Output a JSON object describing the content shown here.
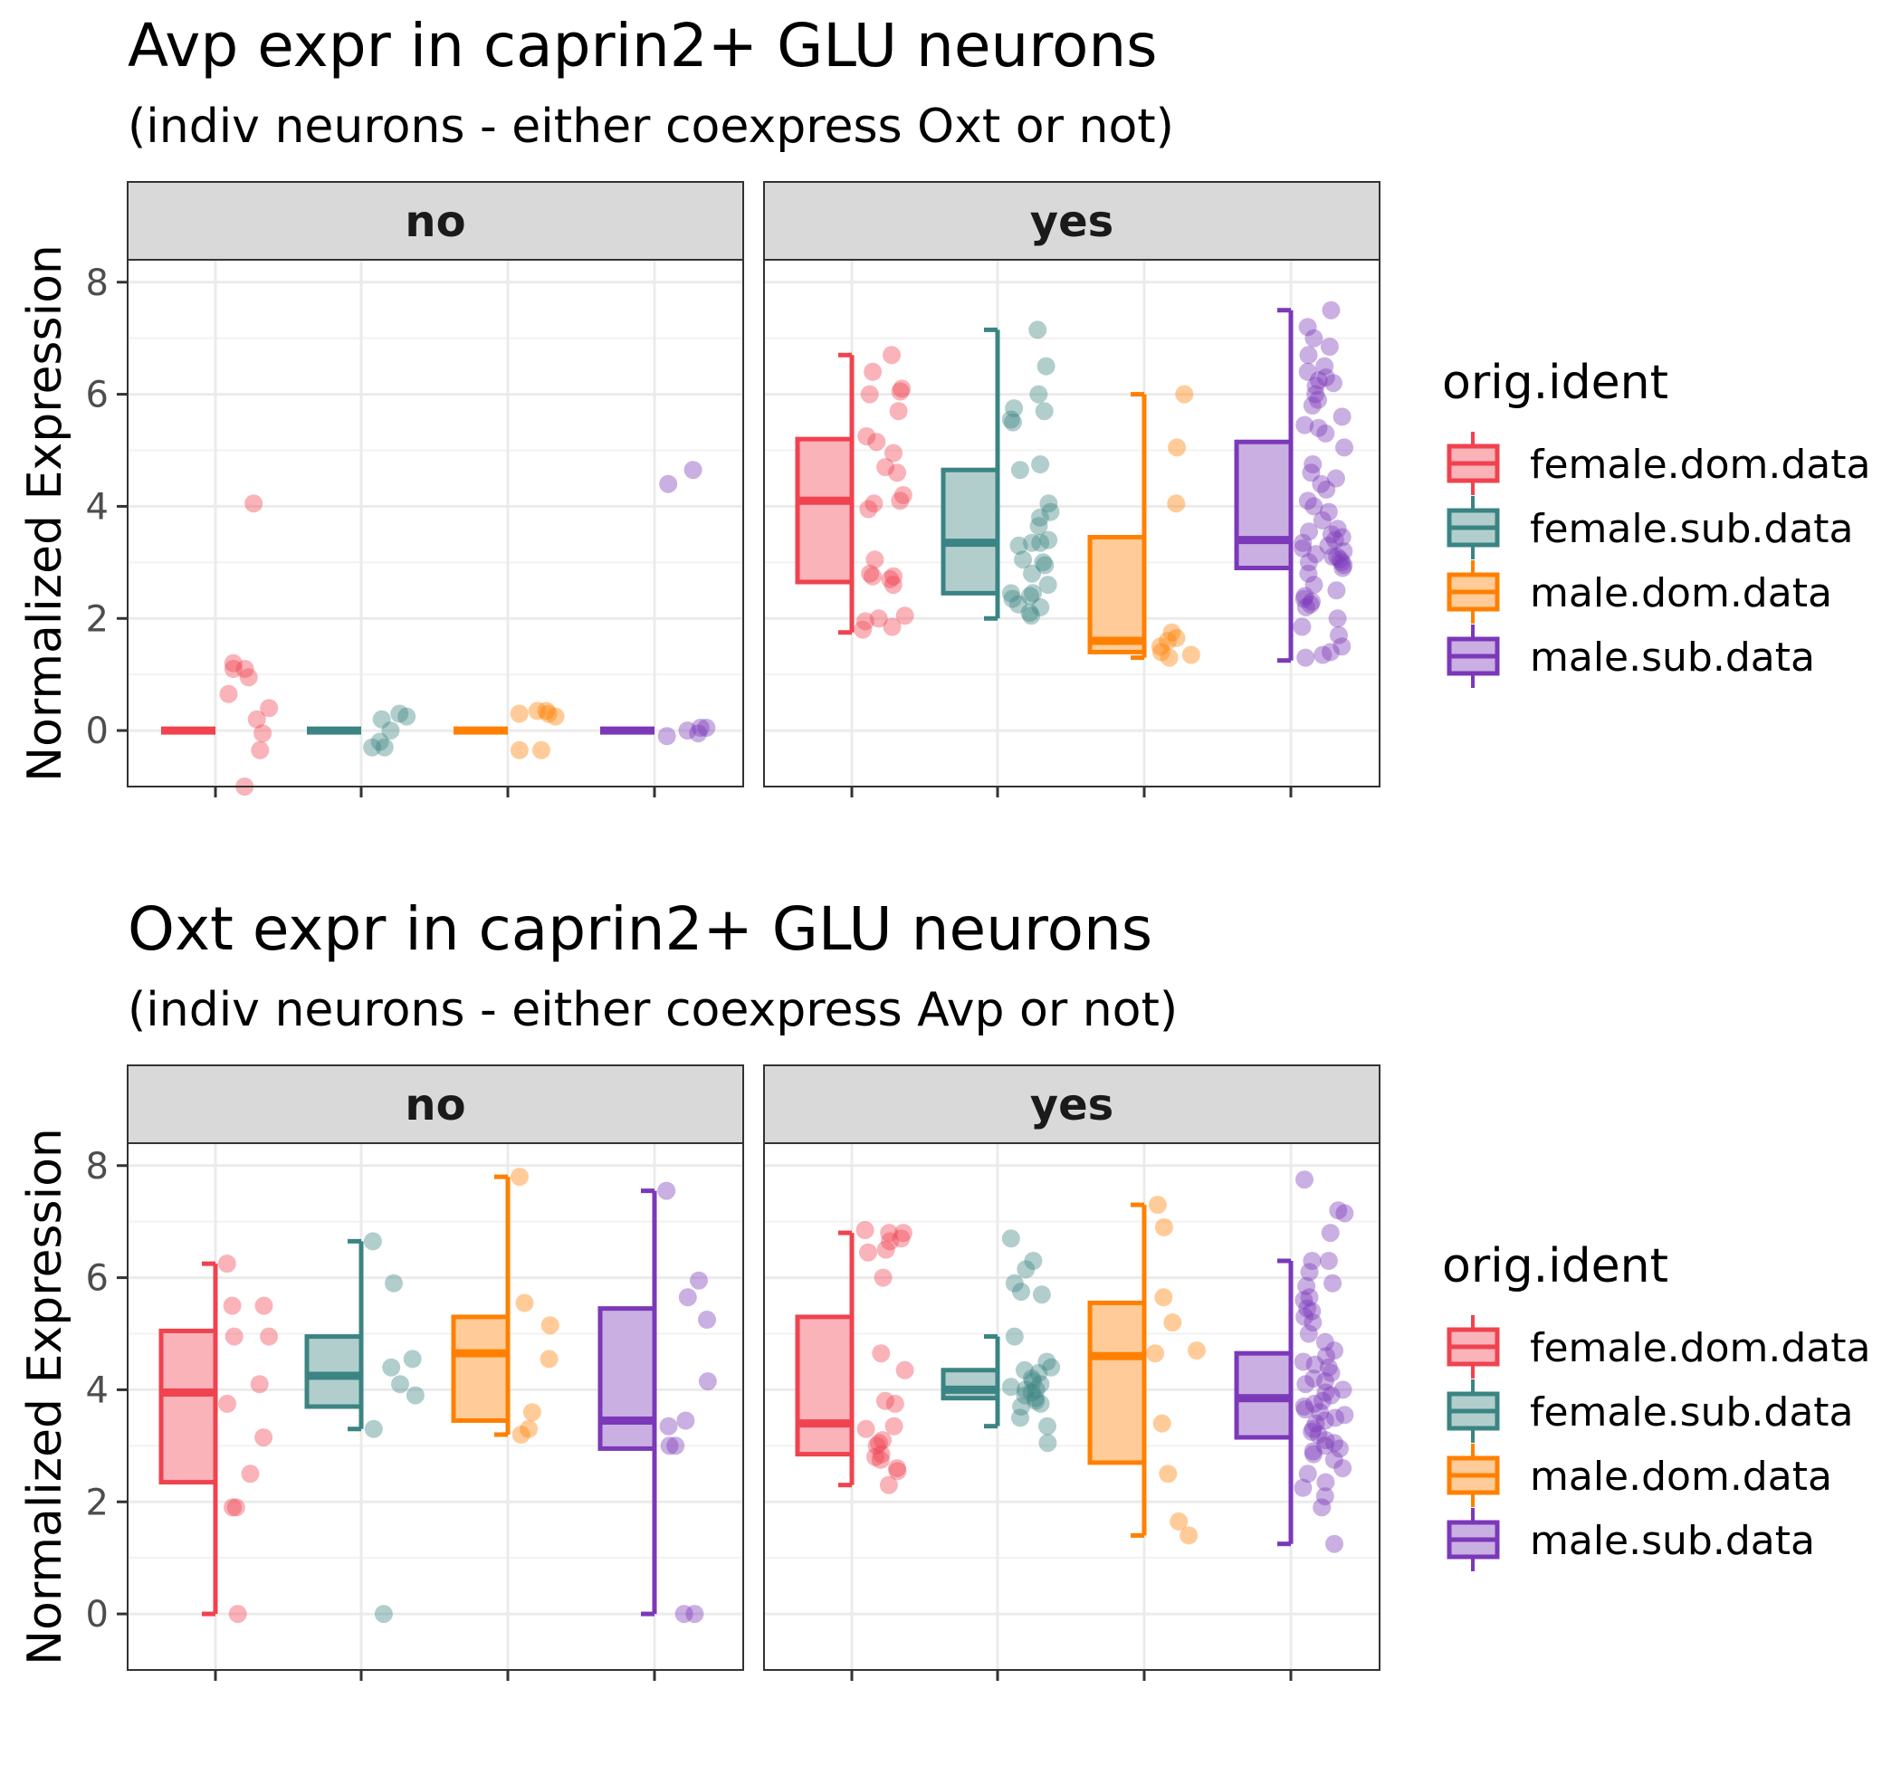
{
  "colors": {
    "female.dom.data": "#f0424f",
    "female.sub.data": "#3b8483",
    "male.dom.data": "#ff8000",
    "male.sub.data": "#7b38b8"
  },
  "chart_data": [
    {
      "type": "box+jitter",
      "title": "Avp expr in caprin2+ GLU neurons",
      "subtitle": "(indiv neurons - either coexpress Oxt or not)",
      "ylabel": "Normalized Expression",
      "xlabel": "",
      "yticks": [
        0,
        2,
        4,
        6,
        8
      ],
      "ylim": [
        -1,
        8.4
      ],
      "grid": true,
      "legend": {
        "title": "orig.ident",
        "position": "right",
        "items": [
          "female.dom.data",
          "female.sub.data",
          "male.dom.data",
          "male.sub.data"
        ]
      },
      "facets": [
        {
          "label": "no",
          "groups": [
            {
              "name": "female.dom.data",
              "box": {
                "min": 0,
                "q1": 0,
                "median": 0,
                "q3": 0,
                "max": 0
              },
              "points": [
                4.05,
                1.2,
                1.1,
                1.1,
                0.95,
                0.65,
                0.4,
                0.2,
                -0.05,
                -0.35,
                -1.0
              ]
            },
            {
              "name": "female.sub.data",
              "box": {
                "min": 0,
                "q1": 0,
                "median": 0,
                "q3": 0,
                "max": 0
              },
              "points": [
                0.3,
                0.25,
                0.2,
                0.0,
                -0.2,
                -0.3,
                -0.3
              ]
            },
            {
              "name": "male.dom.data",
              "box": {
                "min": 0,
                "q1": 0,
                "median": 0,
                "q3": 0,
                "max": 0
              },
              "points": [
                0.35,
                0.35,
                0.3,
                0.3,
                0.25,
                -0.35,
                -0.35
              ]
            },
            {
              "name": "male.sub.data",
              "box": {
                "min": 0,
                "q1": 0,
                "median": 0,
                "q3": 0,
                "max": 0
              },
              "points": [
                4.65,
                4.4,
                0.05,
                0.05,
                0.0,
                -0.05,
                -0.1
              ]
            }
          ]
        },
        {
          "label": "yes",
          "groups": [
            {
              "name": "female.dom.data",
              "box": {
                "min": 1.75,
                "q1": 2.65,
                "median": 4.1,
                "q3": 5.2,
                "max": 6.7
              },
              "points": [
                6.7,
                6.4,
                6.1,
                6.05,
                6.0,
                5.7,
                5.25,
                5.15,
                4.95,
                4.7,
                4.6,
                4.2,
                4.1,
                4.05,
                3.95,
                3.05,
                2.8,
                2.75,
                2.75,
                2.7,
                2.6,
                2.05,
                2.0,
                1.95,
                1.85,
                1.8
              ]
            },
            {
              "name": "female.sub.data",
              "box": {
                "min": 2.0,
                "q1": 2.45,
                "median": 3.35,
                "q3": 4.65,
                "max": 7.15
              },
              "points": [
                7.15,
                6.5,
                6.0,
                5.75,
                5.7,
                5.55,
                5.5,
                4.75,
                4.65,
                4.05,
                3.9,
                3.8,
                3.65,
                3.4,
                3.35,
                3.35,
                3.3,
                3.05,
                3.0,
                2.95,
                2.8,
                2.6,
                2.45,
                2.45,
                2.4,
                2.35,
                2.25,
                2.2,
                2.1,
                2.05
              ]
            },
            {
              "name": "male.dom.data",
              "box": {
                "min": 1.3,
                "q1": 1.4,
                "median": 1.6,
                "q3": 3.45,
                "max": 6.0
              },
              "points": [
                6.0,
                5.05,
                4.05,
                1.75,
                1.65,
                1.6,
                1.5,
                1.4,
                1.35,
                1.3
              ]
            },
            {
              "name": "male.sub.data",
              "box": {
                "min": 1.25,
                "q1": 2.9,
                "median": 3.4,
                "q3": 5.15,
                "max": 7.5
              },
              "points": [
                7.5,
                7.2,
                7.0,
                6.85,
                6.7,
                6.5,
                6.4,
                6.3,
                6.25,
                6.2,
                6.15,
                6.0,
                5.9,
                5.8,
                5.6,
                5.45,
                5.4,
                5.3,
                5.05,
                4.75,
                4.6,
                4.5,
                4.4,
                4.3,
                4.1,
                4.0,
                3.9,
                3.75,
                3.6,
                3.55,
                3.5,
                3.45,
                3.4,
                3.35,
                3.3,
                3.25,
                3.2,
                3.15,
                3.1,
                3.1,
                3.05,
                3.0,
                3.0,
                2.95,
                2.9,
                2.8,
                2.6,
                2.5,
                2.4,
                2.35,
                2.3,
                2.25,
                2.2,
                2.0,
                1.85,
                1.7,
                1.5,
                1.4,
                1.35,
                1.3
              ]
            }
          ]
        }
      ]
    },
    {
      "type": "box+jitter",
      "title": "Oxt expr in caprin2+ GLU neurons",
      "subtitle": "(indiv neurons - either coexpress Avp or not)",
      "ylabel": "Normalized Expression",
      "xlabel": "",
      "yticks": [
        0,
        2,
        4,
        6,
        8
      ],
      "ylim": [
        -1,
        8.4
      ],
      "grid": true,
      "legend": {
        "title": "orig.ident",
        "position": "right",
        "items": [
          "female.dom.data",
          "female.sub.data",
          "male.dom.data",
          "male.sub.data"
        ]
      },
      "facets": [
        {
          "label": "no",
          "groups": [
            {
              "name": "female.dom.data",
              "box": {
                "min": 0,
                "q1": 2.35,
                "median": 3.95,
                "q3": 5.05,
                "max": 6.25
              },
              "points": [
                6.25,
                5.5,
                5.5,
                4.95,
                4.95,
                4.1,
                3.75,
                3.15,
                2.5,
                1.9,
                1.9,
                0.0
              ]
            },
            {
              "name": "female.sub.data",
              "box": {
                "min": 3.3,
                "q1": 3.7,
                "median": 4.25,
                "q3": 4.95,
                "max": 6.65
              },
              "points": [
                6.65,
                5.9,
                4.55,
                4.4,
                4.1,
                3.9,
                3.3,
                0.0
              ]
            },
            {
              "name": "male.dom.data",
              "box": {
                "min": 3.2,
                "q1": 3.45,
                "median": 4.65,
                "q3": 5.3,
                "max": 7.8
              },
              "points": [
                7.8,
                5.55,
                5.15,
                4.55,
                3.6,
                3.3,
                3.2
              ]
            },
            {
              "name": "male.sub.data",
              "box": {
                "min": 0,
                "q1": 2.95,
                "median": 3.45,
                "q3": 5.45,
                "max": 7.55
              },
              "points": [
                7.55,
                5.95,
                5.65,
                5.25,
                4.15,
                3.45,
                3.35,
                3.0,
                3.0,
                0.0,
                0.0
              ]
            }
          ]
        },
        {
          "label": "yes",
          "groups": [
            {
              "name": "female.dom.data",
              "box": {
                "min": 2.3,
                "q1": 2.85,
                "median": 3.4,
                "q3": 5.3,
                "max": 6.8
              },
              "points": [
                6.85,
                6.8,
                6.8,
                6.7,
                6.65,
                6.5,
                6.45,
                6.0,
                4.65,
                4.35,
                3.8,
                3.75,
                3.35,
                3.3,
                3.1,
                3.05,
                3.0,
                2.85,
                2.8,
                2.75,
                2.6,
                2.55,
                2.3
              ]
            },
            {
              "name": "female.sub.data",
              "box": {
                "min": 3.35,
                "q1": 3.85,
                "median": 4.0,
                "q3": 4.35,
                "max": 4.95
              },
              "points": [
                6.7,
                6.3,
                6.15,
                5.9,
                5.75,
                5.7,
                4.95,
                4.5,
                4.4,
                4.35,
                4.3,
                4.2,
                4.15,
                4.1,
                4.05,
                4.0,
                4.0,
                3.95,
                3.9,
                3.85,
                3.8,
                3.75,
                3.7,
                3.5,
                3.35,
                3.05
              ]
            },
            {
              "name": "male.dom.data",
              "box": {
                "min": 1.4,
                "q1": 2.7,
                "median": 4.6,
                "q3": 5.55,
                "max": 7.3
              },
              "points": [
                7.3,
                6.9,
                5.65,
                5.2,
                4.7,
                4.65,
                3.4,
                2.5,
                1.65,
                1.4
              ]
            },
            {
              "name": "male.sub.data",
              "box": {
                "min": 1.25,
                "q1": 3.15,
                "median": 3.85,
                "q3": 4.65,
                "max": 6.3
              },
              "points": [
                7.75,
                7.2,
                7.15,
                6.8,
                6.3,
                6.3,
                6.1,
                5.9,
                5.85,
                5.65,
                5.6,
                5.45,
                5.4,
                5.3,
                5.2,
                5.0,
                4.85,
                4.7,
                4.6,
                4.5,
                4.45,
                4.4,
                4.3,
                4.2,
                4.15,
                4.1,
                4.0,
                3.95,
                3.9,
                3.8,
                3.75,
                3.7,
                3.65,
                3.6,
                3.55,
                3.5,
                3.45,
                3.4,
                3.3,
                3.25,
                3.2,
                3.1,
                3.05,
                3.0,
                2.95,
                2.9,
                2.85,
                2.75,
                2.6,
                2.5,
                2.35,
                2.25,
                2.1,
                1.9,
                1.25
              ]
            }
          ]
        }
      ]
    }
  ]
}
